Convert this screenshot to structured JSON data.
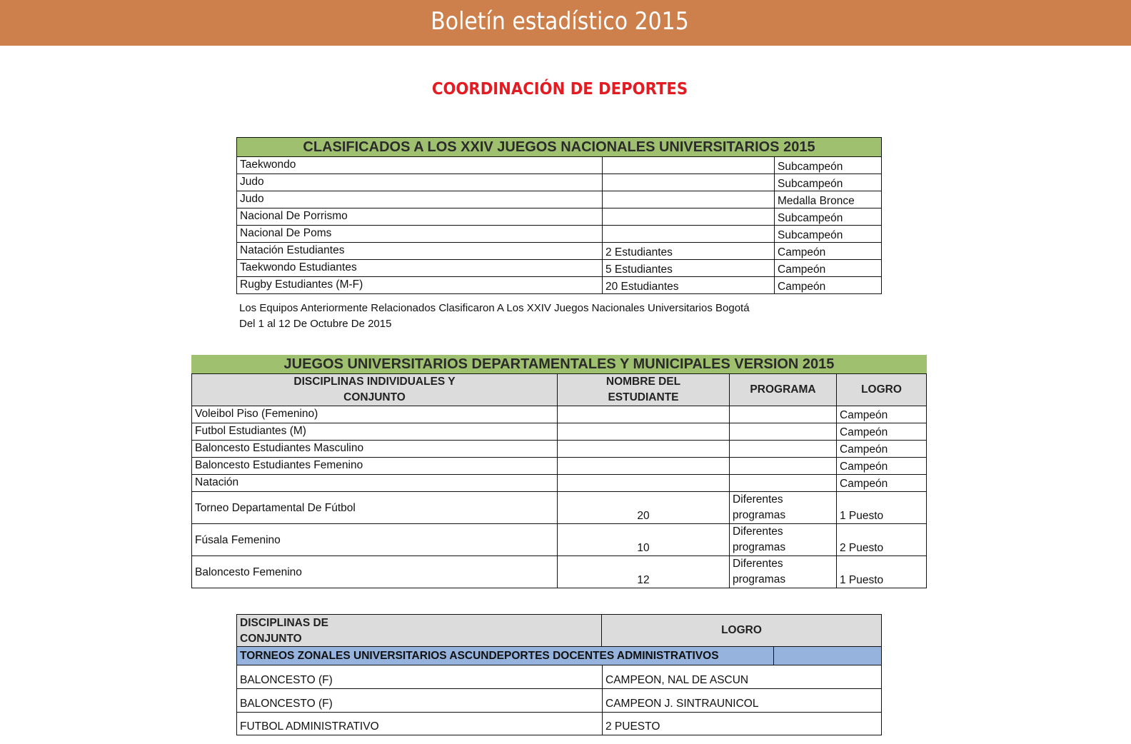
{
  "header": {
    "title": "Boletín estadístico 2015",
    "color": "#cd804c"
  },
  "section_title": "COORDINACIÓN DE DEPORTES",
  "table1": {
    "title": "CLASIFICADOS A LOS XXIV  JUEGOS NACIONALES UNIVERSITARIOS 2015",
    "rows": [
      [
        "Taekwondo",
        "",
        "Subcampeón"
      ],
      [
        "Judo",
        "",
        "Subcampeón"
      ],
      [
        "Judo",
        "",
        "Medalla  Bronce"
      ],
      [
        "Nacional De Porrismo",
        "",
        "Subcampeón"
      ],
      [
        "Nacional De Poms",
        "",
        "Subcampeón"
      ],
      [
        "Natación   Estudiantes",
        "2 Estudiantes",
        "Campeón"
      ],
      [
        "Taekwondo  Estudiantes",
        "5 Estudiantes",
        "Campeón"
      ],
      [
        "Rugby Estudiantes (M-F)",
        "20  Estudiantes",
        "Campeón"
      ]
    ],
    "note_line1": "Los Equipos Anteriormente Relacionados Clasificaron A Los XXIV  Juegos Nacionales Universitarios Bogotá",
    "note_line2": "Del 1 al 12 De Octubre De 2015"
  },
  "table2": {
    "title": "JUEGOS UNIVERSITARIOS DEPARTAMENTALES Y MUNICIPALES VERSION 2015",
    "headers": [
      "DISCIPLINAS INDIVIDUALES Y\nCONJUNTO",
      "NOMBRE DEL\nESTUDIANTE",
      "PROGRAMA",
      "LOGRO"
    ],
    "rows": [
      [
        "Voleibol Piso (Femenino)",
        "",
        "",
        "Campeón"
      ],
      [
        "Futbol Estudiantes (M)",
        "",
        "",
        "Campeón"
      ],
      [
        "Baloncesto Estudiantes Masculino",
        "",
        "",
        "Campeón"
      ],
      [
        "Baloncesto  Estudiantes Femenino",
        "",
        "",
        "Campeón"
      ],
      [
        "Natación",
        "",
        "",
        "Campeón"
      ],
      [
        "Torneo Departamental De Fútbol",
        "20",
        "Diferentes\nprogramas",
        "1 Puesto"
      ],
      [
        "Fúsala  Femenino",
        "10",
        "Diferentes\nprogramas",
        "2 Puesto"
      ],
      [
        "Baloncesto  Femenino",
        "12",
        "Diferentes\nprogramas",
        "1 Puesto"
      ]
    ]
  },
  "table3": {
    "headers": [
      "DISCIPLINAS DE\nCONJUNTO",
      "LOGRO"
    ],
    "subheader": "TORNEOS ZONALES UNIVERSITARIOS ASCUNDEPORTES DOCENTES  ADMINISTRATIVOS",
    "rows": [
      [
        "BALONCESTO (F)",
        "CAMPEON,  NAL DE ASCUN"
      ],
      [
        "BALONCESTO (F)",
        "CAMPEON J. SINTRAUNICOL"
      ],
      [
        "FUTBOL  ADMINISTRATIVO",
        "2 PUESTO"
      ]
    ]
  }
}
